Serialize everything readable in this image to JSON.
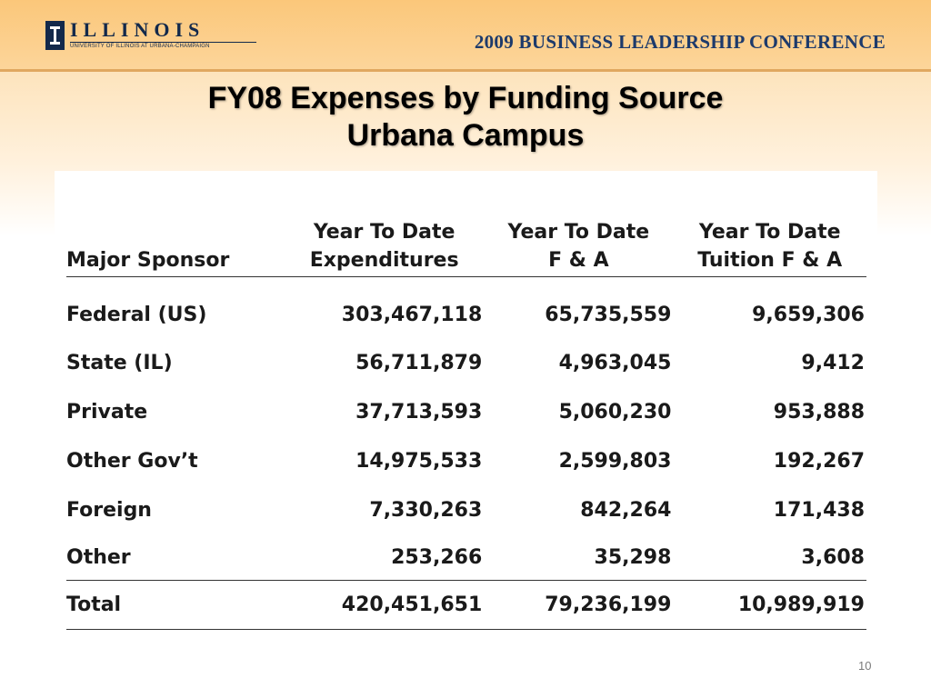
{
  "header": {
    "logo_text": "ILLINOIS",
    "logo_subtitle": "UNIVERSITY OF ILLINOIS AT URBANA-CHAMPAIGN",
    "conference": "2009 BUSINESS LEADERSHIP CONFERENCE"
  },
  "title": {
    "line1": "FY08 Expenses by Funding Source",
    "line2": "Urbana Campus"
  },
  "table": {
    "headers": {
      "sponsor": "Major Sponsor",
      "expenditures_line1": "Year To Date",
      "expenditures_line2": "Expenditures",
      "fa_line1": "Year To Date",
      "fa_line2": "F & A",
      "tuition_line1": "Year To Date",
      "tuition_line2": "Tuition F & A"
    },
    "rows": [
      {
        "sponsor": "Federal (US)",
        "expenditures": "303,467,118",
        "fa": "65,735,559",
        "tuition": "9,659,306"
      },
      {
        "sponsor": "State (IL)",
        "expenditures": "56,711,879",
        "fa": "4,963,045",
        "tuition": "9,412"
      },
      {
        "sponsor": "Private",
        "expenditures": "37,713,593",
        "fa": "5,060,230",
        "tuition": "953,888"
      },
      {
        "sponsor": "Other Gov’t",
        "expenditures": "14,975,533",
        "fa": "2,599,803",
        "tuition": "192,267"
      },
      {
        "sponsor": "Foreign",
        "expenditures": "7,330,263",
        "fa": "842,264",
        "tuition": "171,438"
      },
      {
        "sponsor": "Other",
        "expenditures": "253,266",
        "fa": "35,298",
        "tuition": "3,608"
      }
    ],
    "total": {
      "sponsor": "Total",
      "expenditures": "420,451,651",
      "fa": "79,236,199",
      "tuition": "10,989,919"
    }
  },
  "page_number": "10"
}
